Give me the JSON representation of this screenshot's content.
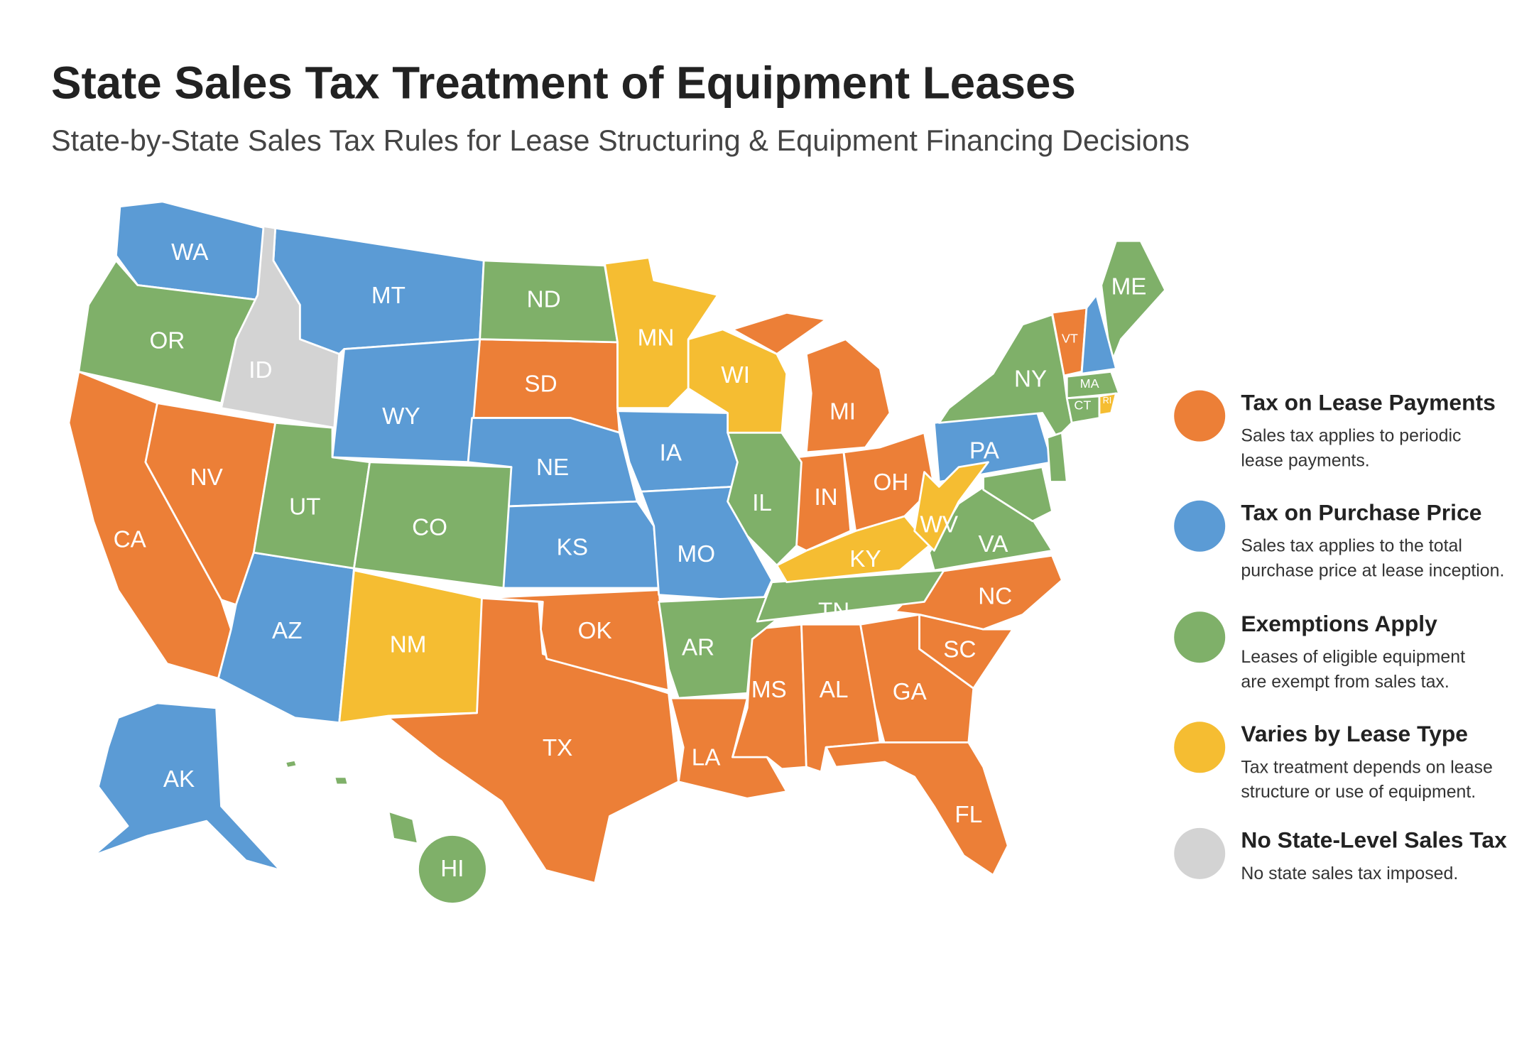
{
  "title": "State Sales Tax Treatment of Equipment Leases",
  "subtitle": "State-by-State Sales Tax Rules for Lease Structuring & Equipment Financing Decisions",
  "legend": [
    {
      "label": "Tax on Lease Payments",
      "description": [
        "Sales tax applies to periodic",
        "lease payments."
      ],
      "color": "#ec7f37",
      "states": [
        "CA",
        "NV",
        "SD",
        "MI",
        "IN",
        "OH",
        "VT",
        "TX",
        "OK",
        "LA",
        "MS",
        "AL",
        "GA",
        "SC",
        "NC",
        "FL"
      ]
    },
    {
      "label": "Tax on Purchase Price",
      "description": [
        "Sales tax applies to the total",
        "purchase price at lease inception."
      ],
      "color": "#5b9bd5",
      "states": [
        "WA",
        "MT",
        "WY",
        "NE",
        "KS",
        "IA",
        "MO",
        "AZ",
        "AK",
        "PA"
      ]
    },
    {
      "label": "Exemptions Apply",
      "description": [
        "Leases of eligible equipment",
        "are exempt from sales tax."
      ],
      "color": "#7fb069",
      "states": [
        "OR",
        "UT",
        "CO",
        "ND",
        "IL",
        "AR",
        "TN",
        "VA",
        "NY",
        "ME",
        "MA",
        "CT",
        "HI"
      ]
    },
    {
      "label": "Varies by Lease Type",
      "description": [
        "Tax treatment depends on lease",
        "structure or use of equipment."
      ],
      "color": "#f5bd32",
      "states": [
        "MN",
        "WI",
        "NM",
        "KY",
        "WV",
        "RI"
      ]
    },
    {
      "label": "No State-Level Sales Tax",
      "description": [
        "No state sales tax imposed."
      ],
      "color": "#d3d3d3",
      "states": [
        "ID"
      ]
    }
  ]
}
